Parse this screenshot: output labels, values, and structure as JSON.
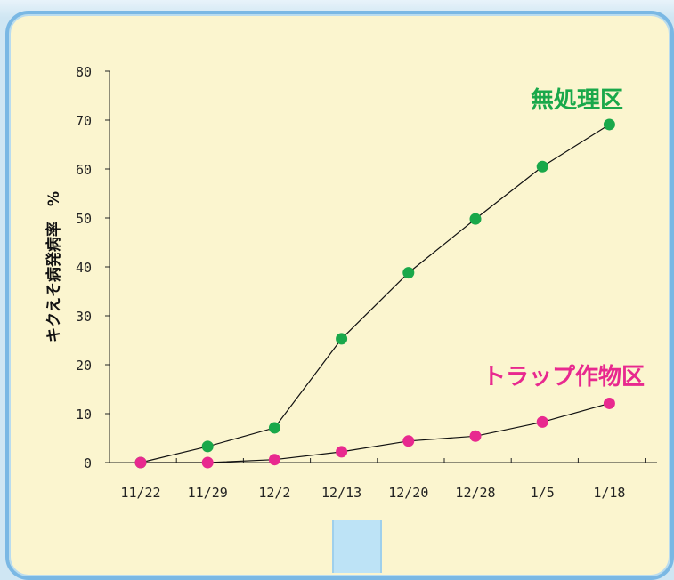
{
  "chart_data": {
    "type": "line",
    "categories": [
      "11/22",
      "11/29",
      "12/2",
      "12/13",
      "12/20",
      "12/28",
      "1/5",
      "1/18"
    ],
    "ylabel": "キクえそ病発病率　%",
    "ylim": [
      0,
      80
    ],
    "yticks": [
      0,
      10,
      20,
      30,
      40,
      50,
      60,
      70,
      80
    ],
    "grid": false,
    "series": [
      {
        "name": "無処理区",
        "color": "#19a84a",
        "values": [
          0,
          3.3,
          7.1,
          25.3,
          38.8,
          49.8,
          60.5,
          69.1
        ]
      },
      {
        "name": "トラップ作物区",
        "color": "#e8298f",
        "values": [
          0,
          0,
          0.6,
          2.2,
          4.4,
          5.4,
          8.3,
          12.1
        ]
      }
    ]
  }
}
